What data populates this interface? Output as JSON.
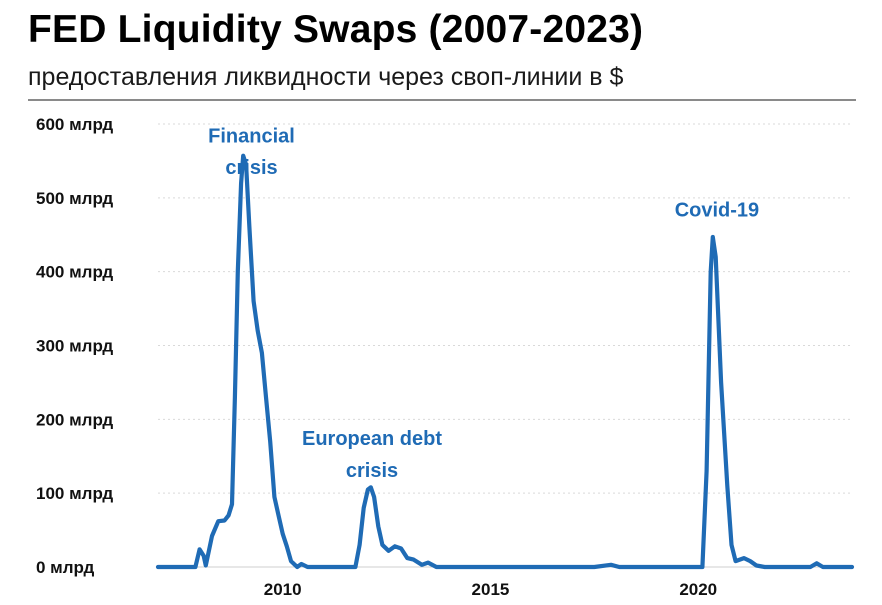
{
  "header": {
    "title": "FED Liquidity Swaps (2007-2023)",
    "subtitle": "предоставления ликвидности через своп-линии в $"
  },
  "chart_data": {
    "type": "line",
    "title": "FED Liquidity Swaps (2007-2023)",
    "subtitle": "предоставления ликвидности через своп-линии в $",
    "xlabel": "",
    "ylabel": "",
    "xlim": [
      2007.0,
      2023.7
    ],
    "ylim": [
      0,
      600
    ],
    "grid": true,
    "legend": "none",
    "color": "#1f6bb5",
    "y_ticks": [
      {
        "value": 0,
        "label": "0 млрд"
      },
      {
        "value": 100,
        "label": "100 млрд"
      },
      {
        "value": 200,
        "label": "200 млрд"
      },
      {
        "value": 300,
        "label": "300 млрд"
      },
      {
        "value": 400,
        "label": "400 млрд"
      },
      {
        "value": 500,
        "label": "500 млрд"
      },
      {
        "value": 600,
        "label": "600 млрд"
      }
    ],
    "x_ticks": [
      {
        "value": 2010,
        "label": "2010"
      },
      {
        "value": 2015,
        "label": "2015"
      },
      {
        "value": 2020,
        "label": "2020"
      }
    ],
    "annotations": [
      {
        "lines": [
          "Financial",
          "crisis"
        ],
        "x": 2009.25,
        "y": 575,
        "y2": 532
      },
      {
        "lines": [
          "European debt",
          "crisis"
        ],
        "x": 2012.15,
        "y": 165,
        "y2": 122
      },
      {
        "lines": [
          "Covid-19"
        ],
        "x": 2020.45,
        "y": 475
      }
    ],
    "series": [
      {
        "name": "",
        "points": [
          [
            2007.0,
            0
          ],
          [
            2007.6,
            0
          ],
          [
            2007.9,
            0
          ],
          [
            2008.0,
            24
          ],
          [
            2008.1,
            15
          ],
          [
            2008.15,
            2
          ],
          [
            2008.3,
            42
          ],
          [
            2008.45,
            62
          ],
          [
            2008.6,
            63
          ],
          [
            2008.7,
            70
          ],
          [
            2008.78,
            85
          ],
          [
            2008.85,
            230
          ],
          [
            2008.92,
            400
          ],
          [
            2009.0,
            520
          ],
          [
            2009.05,
            557
          ],
          [
            2009.12,
            545
          ],
          [
            2009.2,
            460
          ],
          [
            2009.3,
            360
          ],
          [
            2009.4,
            320
          ],
          [
            2009.5,
            290
          ],
          [
            2009.6,
            230
          ],
          [
            2009.7,
            170
          ],
          [
            2009.8,
            95
          ],
          [
            2009.9,
            70
          ],
          [
            2010.0,
            45
          ],
          [
            2010.1,
            28
          ],
          [
            2010.2,
            8
          ],
          [
            2010.35,
            0
          ],
          [
            2010.45,
            4
          ],
          [
            2010.6,
            0
          ],
          [
            2011.5,
            0
          ],
          [
            2011.75,
            0
          ],
          [
            2011.85,
            30
          ],
          [
            2011.95,
            80
          ],
          [
            2012.05,
            105
          ],
          [
            2012.12,
            108
          ],
          [
            2012.2,
            95
          ],
          [
            2012.3,
            55
          ],
          [
            2012.4,
            30
          ],
          [
            2012.55,
            22
          ],
          [
            2012.7,
            28
          ],
          [
            2012.85,
            25
          ],
          [
            2013.0,
            12
          ],
          [
            2013.15,
            10
          ],
          [
            2013.35,
            3
          ],
          [
            2013.5,
            6
          ],
          [
            2013.7,
            0
          ],
          [
            2017.5,
            0
          ],
          [
            2017.9,
            3
          ],
          [
            2018.1,
            0
          ],
          [
            2019.9,
            0
          ],
          [
            2020.1,
            0
          ],
          [
            2020.2,
            130
          ],
          [
            2020.3,
            400
          ],
          [
            2020.35,
            447
          ],
          [
            2020.42,
            420
          ],
          [
            2020.55,
            250
          ],
          [
            2020.7,
            110
          ],
          [
            2020.8,
            30
          ],
          [
            2020.9,
            8
          ],
          [
            2021.0,
            10
          ],
          [
            2021.1,
            12
          ],
          [
            2021.25,
            8
          ],
          [
            2021.4,
            2
          ],
          [
            2021.6,
            0
          ],
          [
            2022.7,
            0
          ],
          [
            2022.85,
            5
          ],
          [
            2023.0,
            0
          ],
          [
            2023.7,
            0
          ]
        ]
      }
    ]
  }
}
